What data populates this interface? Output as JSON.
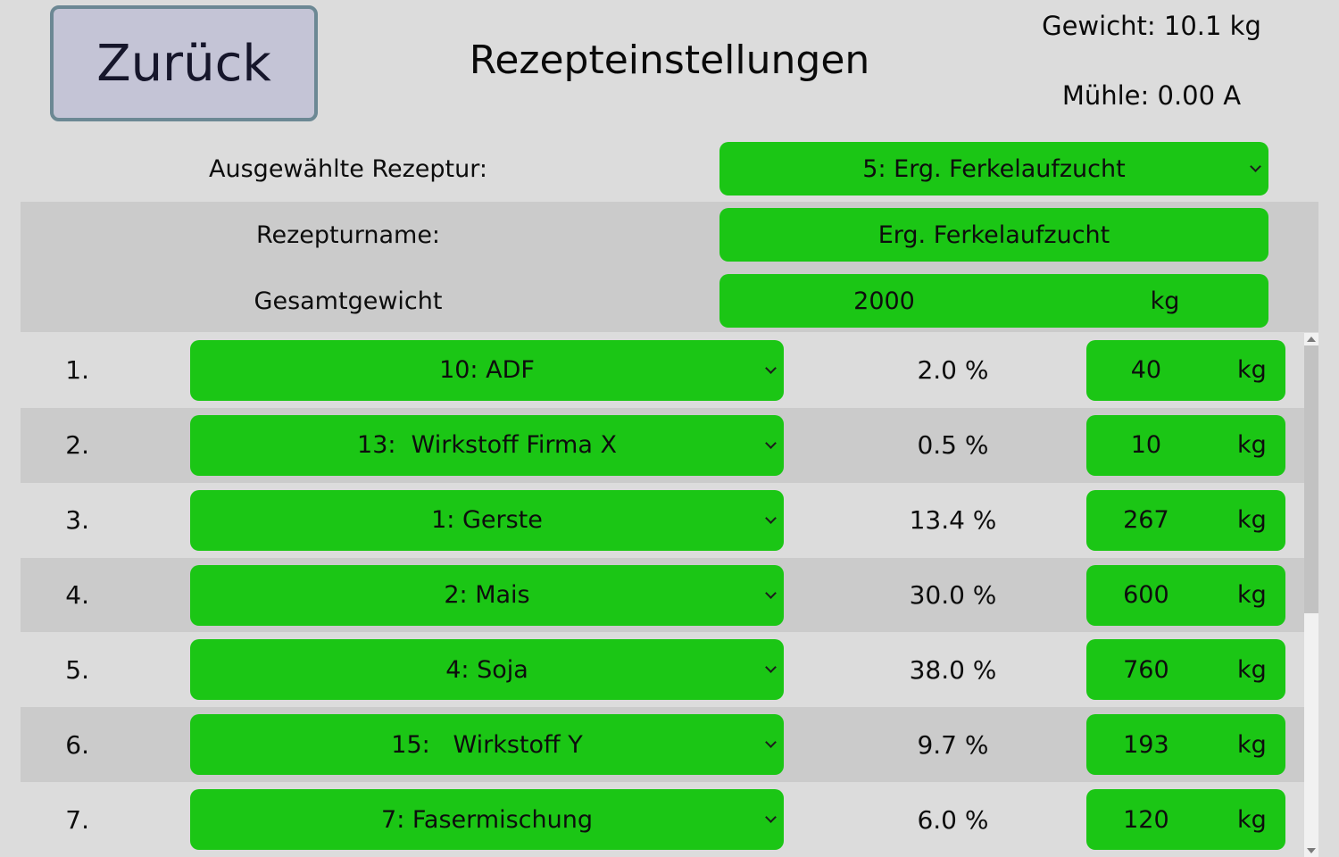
{
  "header": {
    "back_label": "Zurück",
    "title": "Rezepteinstellungen",
    "weight_label": "Gewicht: 10.1 kg",
    "mill_label": "Mühle: 0.00 A"
  },
  "recipe": {
    "selected_label": "Ausgewählte Rezeptur:",
    "selected_value": "5: Erg. Ferkelaufzucht",
    "name_label": "Rezepturname:",
    "name_value": "Erg. Ferkelaufzucht",
    "total_weight_label": "Gesamtgewicht",
    "total_weight_value": "2000",
    "total_weight_unit": "kg"
  },
  "ingredients": {
    "rows": [
      {
        "index": "1.",
        "component": "10: ADF",
        "percent": "2.0 %",
        "amount": "40",
        "unit": "kg"
      },
      {
        "index": "2.",
        "component": "13:  Wirkstoff Firma X",
        "percent": "0.5 %",
        "amount": "10",
        "unit": "kg"
      },
      {
        "index": "3.",
        "component": "1: Gerste",
        "percent": "13.4 %",
        "amount": "267",
        "unit": "kg"
      },
      {
        "index": "4.",
        "component": "2: Mais",
        "percent": "30.0 %",
        "amount": "600",
        "unit": "kg"
      },
      {
        "index": "5.",
        "component": "4: Soja",
        "percent": "38.0 %",
        "amount": "760",
        "unit": "kg"
      },
      {
        "index": "6.",
        "component": "15:   Wirkstoff Y",
        "percent": "9.7 %",
        "amount": "193",
        "unit": "kg"
      },
      {
        "index": "7.",
        "component": "7: Fasermischung",
        "percent": "6.0 %",
        "amount": "120",
        "unit": "kg"
      }
    ]
  },
  "colors": {
    "accent_green": "#1bc615",
    "stripe_gray": "#cbcbcb",
    "page_bg": "#dcdcdc",
    "back_button_bg": "#c4c4d6",
    "back_button_border": "#6c8894",
    "back_button_text": "#16162b",
    "scroll_track": "#f1f1f1",
    "scroll_thumb": "#c2c2c2"
  }
}
